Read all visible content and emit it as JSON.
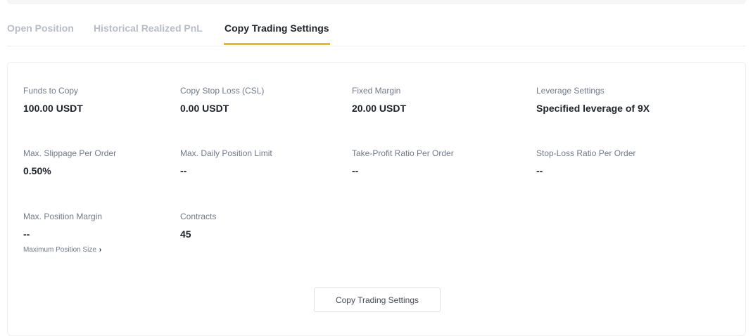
{
  "tabs": [
    {
      "label": "Open Position",
      "active": false
    },
    {
      "label": "Historical Realized PnL",
      "active": false
    },
    {
      "label": "Copy Trading Settings",
      "active": true
    }
  ],
  "accent_color": "#f0b90b",
  "settings": [
    {
      "label": "Funds to Copy",
      "value": "100.00 USDT"
    },
    {
      "label": "Copy Stop Loss (CSL)",
      "value": "0.00 USDT"
    },
    {
      "label": "Fixed Margin",
      "value": "20.00 USDT"
    },
    {
      "label": "Leverage Settings",
      "value": "Specified leverage of 9X"
    },
    {
      "label": "Max. Slippage Per Order",
      "value": "0.50%"
    },
    {
      "label": "Max. Daily Position Limit",
      "value": "--"
    },
    {
      "label": "Take-Profit Ratio Per Order",
      "value": "--"
    },
    {
      "label": "Stop-Loss Ratio Per Order",
      "value": "--"
    },
    {
      "label": "Max. Position Margin",
      "value": "--",
      "link": "Maximum Position Size",
      "link_icon": "chevron-right-icon"
    },
    {
      "label": "Contracts",
      "value": "45"
    }
  ],
  "button_label": "Copy Trading Settings"
}
